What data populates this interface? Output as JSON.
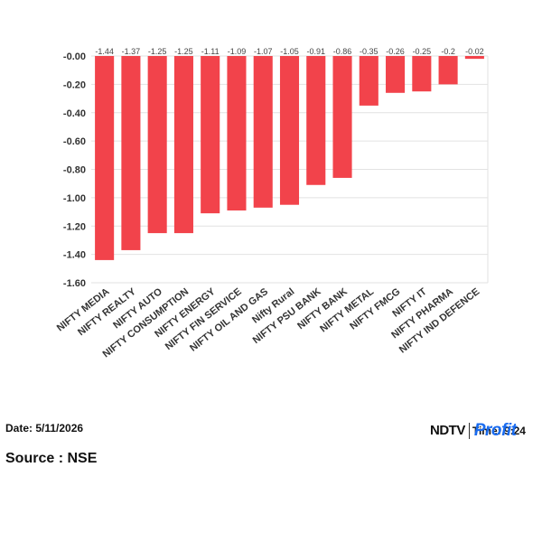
{
  "chart_data": {
    "type": "bar",
    "categories": [
      "NIFTY MEDIA",
      "NIFTY REALTY",
      "NIFTY AUTO",
      "NIFTY CONSUMPTION",
      "NIFTY ENERGY",
      "NIFTY FIN SERVICE",
      "NIFTY OIL AND GAS",
      "Nifty Rural",
      "NIFTY PSU BANK",
      "NIFTY BANK",
      "NIFTY METAL",
      "NIFTY FMCG",
      "NIFTY IT",
      "NIFTY PHARMA",
      "NIFTY IND DEFENCE"
    ],
    "values": [
      -1.44,
      -1.37,
      -1.25,
      -1.25,
      -1.11,
      -1.09,
      -1.07,
      -1.05,
      -0.91,
      -0.86,
      -0.35,
      -0.26,
      -0.25,
      -0.2,
      -0.02
    ],
    "value_labels": [
      "-1.44",
      "-1.37",
      "-1.25",
      "-1.25",
      "-1.11",
      "-1.09",
      "-1.07",
      "-1.05",
      "-0.91",
      "-0.86",
      "-0.35",
      "-0.26",
      "-0.25",
      "-0.2",
      "-0.02"
    ],
    "y_ticks": [
      "-0.00",
      "-0.20",
      "-0.40",
      "-0.60",
      "-0.80",
      "-1.00",
      "-1.20",
      "-1.40",
      "-1.60"
    ],
    "ylim": [
      -1.6,
      0
    ],
    "grid": true,
    "bar_color": "#f2434b",
    "title": "",
    "xlabel": "",
    "ylabel": ""
  },
  "footer": {
    "date_label": "Date: 5/11/2026",
    "source_label": "Source : NSE",
    "brand_ndtv": "NDTV",
    "brand_profit": "Profit",
    "time_label": "Time: 9:24"
  }
}
